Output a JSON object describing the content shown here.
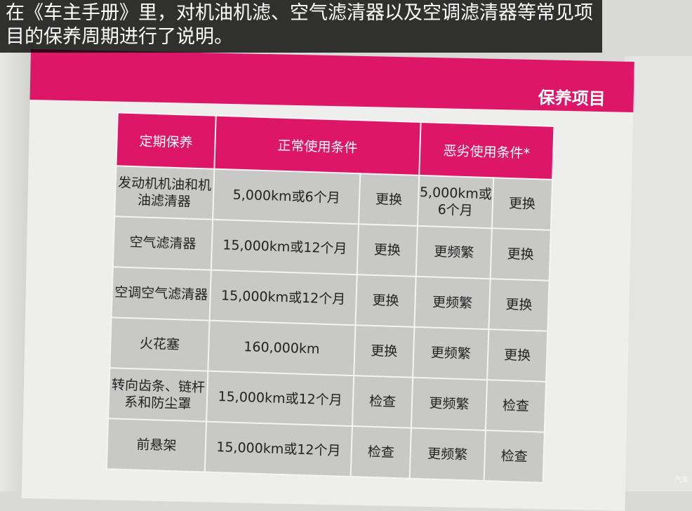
{
  "caption": "在《车主手册》里，对机油机滤、空气滤清器以及空调滤清器等常见项目的保养周期进行了说明。",
  "section_title": "保养项目",
  "headers": [
    "定期保养",
    "正常使用条件",
    "恶劣使用条件*"
  ],
  "rows": [
    {
      "item": "发动机机油和机油滤清器",
      "normal": "5,000km或6个月",
      "normal_action": "更换",
      "severe": "5,000km或6个月",
      "severe_action": "更换"
    },
    {
      "item": "空气滤清器",
      "normal": "15,000km或12个月",
      "normal_action": "更换",
      "severe": "更频繁",
      "severe_action": "更换"
    },
    {
      "item": "空调空气滤清器",
      "normal": "15,000km或12个月",
      "normal_action": "更换",
      "severe": "更频繁",
      "severe_action": "更换"
    },
    {
      "item": "火花塞",
      "normal": "160,000km",
      "normal_action": "更换",
      "severe": "更频繁",
      "severe_action": "更换"
    },
    {
      "item": "转向齿条、链杆系和防尘罩",
      "normal": "15,000km或12个月",
      "normal_action": "检查",
      "severe": "更频繁",
      "severe_action": "检查"
    },
    {
      "item": "前悬架",
      "normal": "15,000km或12个月",
      "normal_action": "检查",
      "severe": "更频繁",
      "severe_action": "检查"
    }
  ],
  "watermark": "汽车",
  "colors": {
    "accent": "#de1667"
  }
}
